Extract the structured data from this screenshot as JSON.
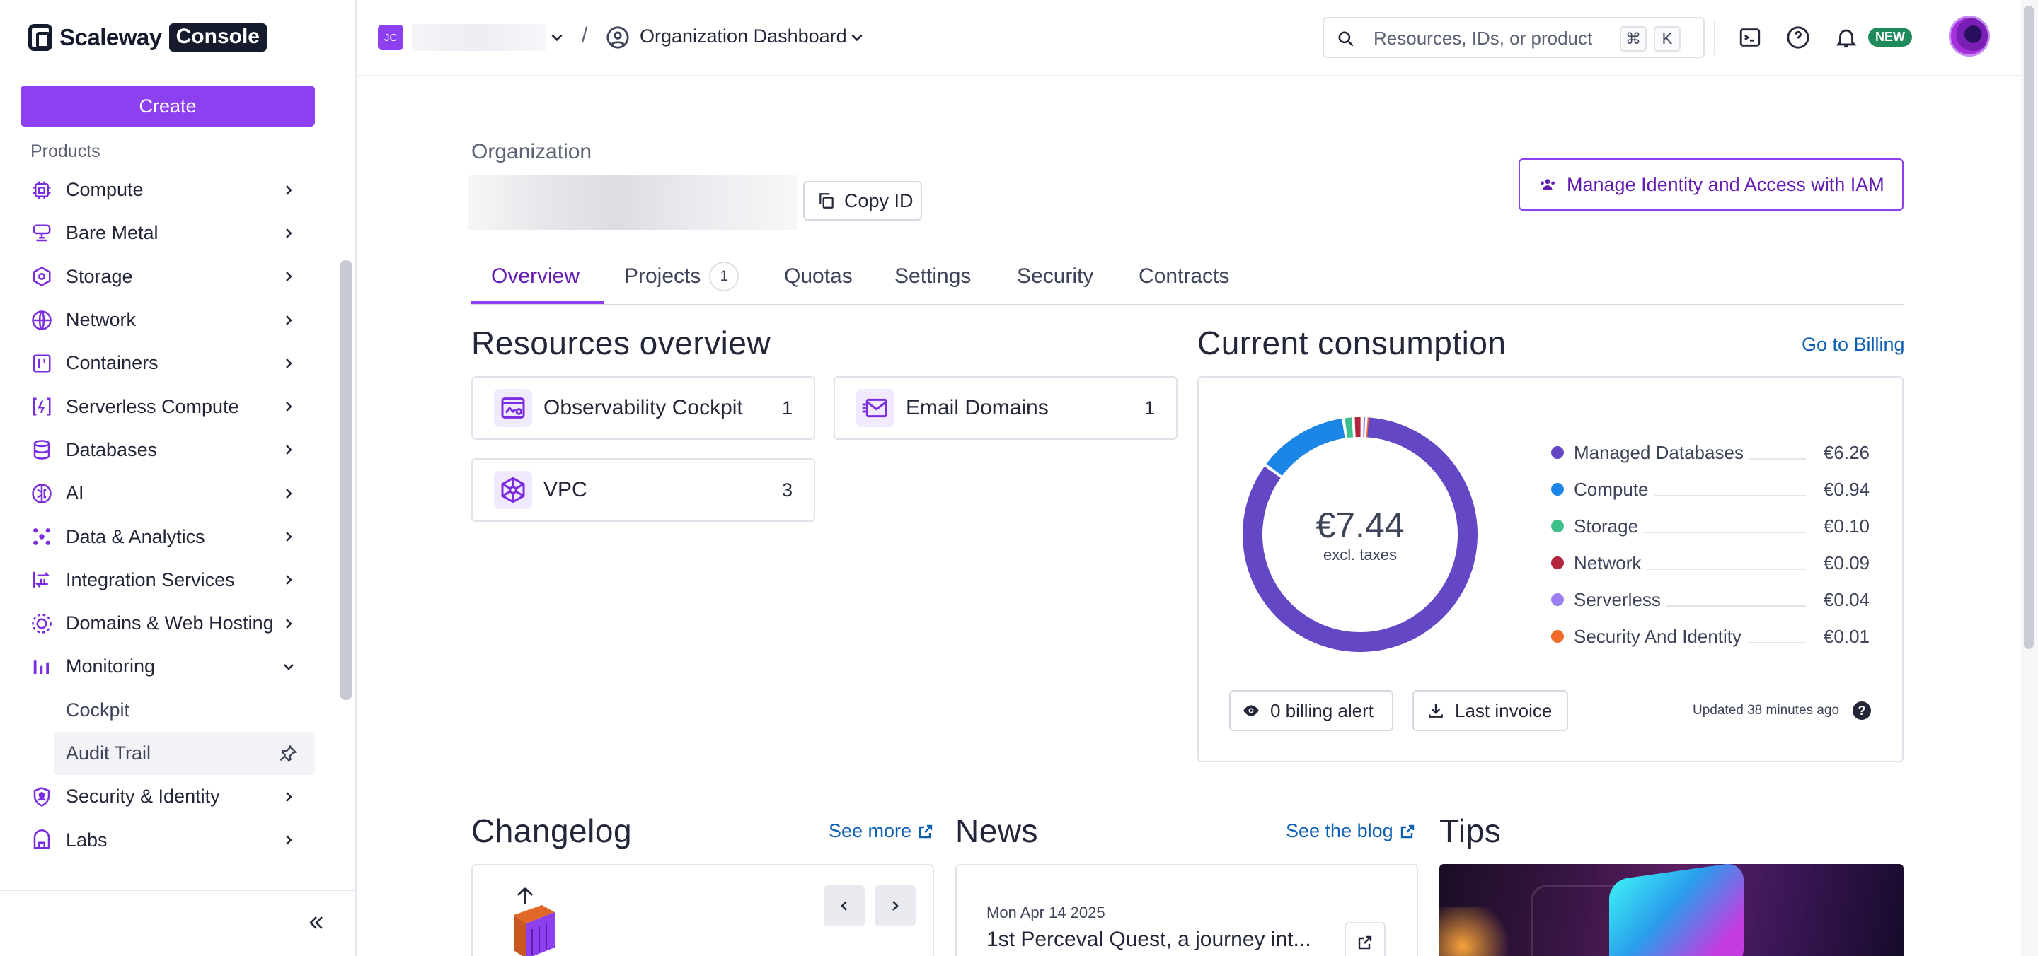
{
  "sidebar": {
    "logo_word": "Scaleway",
    "logo_badge": "Console",
    "create_label": "Create",
    "products_label": "Products",
    "items": [
      {
        "label": "Compute",
        "icon": "cpu-icon"
      },
      {
        "label": "Bare Metal",
        "icon": "server-icon"
      },
      {
        "label": "Storage",
        "icon": "storage-icon"
      },
      {
        "label": "Network",
        "icon": "globe-icon"
      },
      {
        "label": "Containers",
        "icon": "container-icon"
      },
      {
        "label": "Serverless Compute",
        "icon": "serverless-icon"
      },
      {
        "label": "Databases",
        "icon": "database-icon"
      },
      {
        "label": "AI",
        "icon": "brain-icon"
      },
      {
        "label": "Data & Analytics",
        "icon": "analytics-icon"
      },
      {
        "label": "Integration Services",
        "icon": "integration-icon"
      },
      {
        "label": "Domains & Web Hosting",
        "icon": "domains-icon"
      },
      {
        "label": "Monitoring",
        "icon": "monitoring-icon",
        "expanded": true
      },
      {
        "label": "Security & Identity",
        "icon": "shield-icon"
      },
      {
        "label": "Labs",
        "icon": "labs-icon"
      }
    ],
    "monitoring_sub": [
      {
        "label": "Cockpit"
      },
      {
        "label": "Audit Trail",
        "active": true
      }
    ]
  },
  "topbar": {
    "org_initials": "JC",
    "separator": "/",
    "dashboard_label": "Organization Dashboard",
    "search_placeholder": "Resources, IDs, or product",
    "kbd_cmd": "⌘",
    "kbd_k": "K",
    "new_badge": "NEW"
  },
  "header": {
    "org_label": "Organization",
    "copy_id_label": "Copy ID",
    "iam_button_label": "Manage Identity and Access with IAM"
  },
  "tabs": [
    {
      "label": "Overview",
      "active": true
    },
    {
      "label": "Projects",
      "badge": "1"
    },
    {
      "label": "Quotas"
    },
    {
      "label": "Settings"
    },
    {
      "label": "Security"
    },
    {
      "label": "Contracts"
    }
  ],
  "resources": {
    "title": "Resources overview",
    "items": [
      {
        "label": "Observability Cockpit",
        "count": "1",
        "icon": "cockpit-icon"
      },
      {
        "label": "Email Domains",
        "count": "1",
        "icon": "email-icon"
      },
      {
        "label": "VPC",
        "count": "3",
        "icon": "vpc-icon"
      }
    ]
  },
  "consumption": {
    "title": "Current consumption",
    "go_billing": "Go to Billing",
    "total": "€7.44",
    "total_note": "excl. taxes",
    "billing_alert_label": "0 billing alert",
    "last_invoice_label": "Last invoice",
    "updated": "Updated 38 minutes ago",
    "help": "?"
  },
  "chart_data": {
    "type": "pie",
    "categories": [
      "Managed Databases",
      "Compute",
      "Storage",
      "Network",
      "Serverless",
      "Security And Identity"
    ],
    "values": [
      6.26,
      0.94,
      0.1,
      0.09,
      0.04,
      0.01
    ],
    "labels": [
      "€6.26",
      "€0.94",
      "€0.10",
      "€0.09",
      "€0.04",
      "€0.01"
    ],
    "colors": [
      "#6447c4",
      "#1c86e6",
      "#3fbf8c",
      "#b3253e",
      "#9b7ff0",
      "#f06a2a"
    ],
    "donut": true,
    "center_label": "€7.44",
    "legend": "right"
  },
  "changelog": {
    "title": "Changelog",
    "see_more": "See more"
  },
  "news": {
    "title": "News",
    "see_blog": "See the blog",
    "date": "Mon Apr 14 2025",
    "headline": "1st Perceval Quest, a journey int..."
  },
  "tips": {
    "title": "Tips"
  },
  "colors": {
    "accent": "#8c40ef",
    "link": "#0d5fb3",
    "text": "#222638"
  }
}
